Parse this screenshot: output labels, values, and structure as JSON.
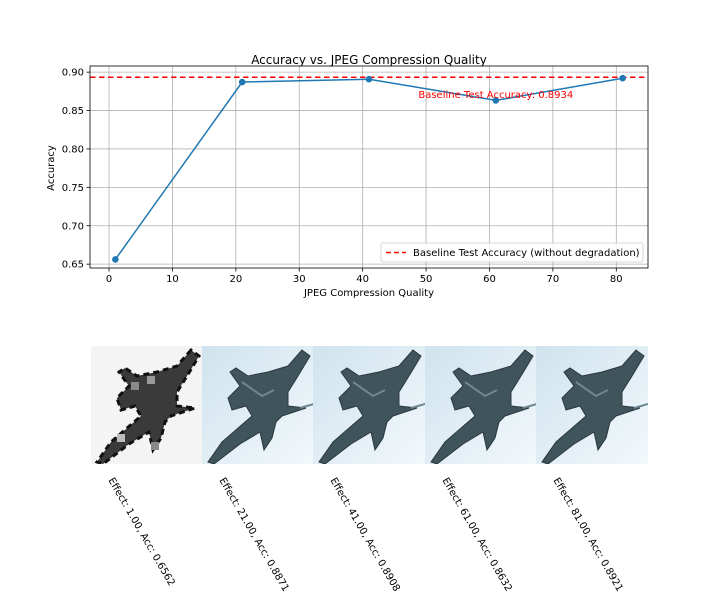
{
  "chart_data": {
    "type": "line",
    "title": "Accuracy vs. JPEG Compression Quality",
    "xlabel": "JPEG Compression Quality",
    "ylabel": "Accuracy",
    "xlim": [
      -3,
      85
    ],
    "ylim": [
      0.645,
      0.908
    ],
    "xticks": [
      0,
      10,
      20,
      30,
      40,
      50,
      60,
      70,
      80
    ],
    "yticks": [
      0.65,
      0.7,
      0.75,
      0.8,
      0.85,
      0.9
    ],
    "ytick_labels": [
      "0.65",
      "0.70",
      "0.75",
      "0.80",
      "0.85",
      "0.90"
    ],
    "grid": true,
    "legend_position": "lower-right",
    "series": [
      {
        "color": "#1f77b4",
        "x": [
          1,
          21,
          41,
          61,
          81
        ],
        "y": [
          0.6562,
          0.8871,
          0.8908,
          0.8632,
          0.8921
        ]
      }
    ],
    "baseline": {
      "value": 0.8934,
      "color": "#ff0000",
      "legend_label": "Baseline Test Accuracy (without degradation)",
      "annotation": "Baseline Test Accuracy: 0.8934"
    }
  },
  "thumbnails": [
    {
      "caption": "Effect: 1.00, Acc: 0.6562",
      "style": "pixelated"
    },
    {
      "caption": "Effect: 21.00, Acc: 0.8871",
      "style": "clear"
    },
    {
      "caption": "Effect: 41.00, Acc: 0.8908",
      "style": "clear"
    },
    {
      "caption": "Effect: 61.00, Acc: 0.8632",
      "style": "clear"
    },
    {
      "caption": "Effect: 81.00, Acc: 0.8921",
      "style": "clear"
    }
  ]
}
